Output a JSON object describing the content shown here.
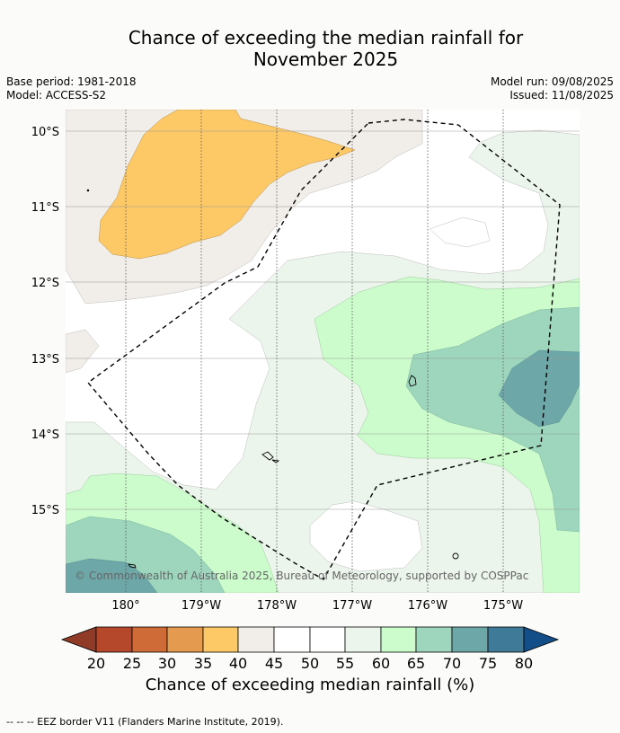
{
  "title": {
    "line1": "Chance of exceeding the median rainfall for",
    "line2": "November 2025"
  },
  "meta": {
    "base_period": "Base period: 1981-2018",
    "model": "Model: ACCESS-S2",
    "model_run": "Model run: 09/08/2025",
    "issued": "Issued: 11/08/2025"
  },
  "axes": {
    "lat_labels": [
      "10°S",
      "11°S",
      "12°S",
      "13°S",
      "14°S",
      "15°S"
    ],
    "lon_labels": [
      "180°",
      "179°W",
      "178°W",
      "177°W",
      "176°W",
      "175°W"
    ]
  },
  "copyright": "© Commonwealth of Australia 2025, Bureau of Meteorology, supported by COSPPac",
  "colorbar": {
    "ticks": [
      "20",
      "25",
      "30",
      "35",
      "40",
      "45",
      "50",
      "55",
      "60",
      "65",
      "70",
      "75",
      "80"
    ],
    "colors": {
      "below20": "#8f3b27",
      "c20_25": "#b5482a",
      "c25_30": "#cf6b36",
      "c30_35": "#e49a4f",
      "c35_40": "#fdc967",
      "c40_45": "#f1ede8",
      "c45_50": "#ffffff",
      "c50_55": "#ffffff",
      "c55_60": "#ebf5eb",
      "c60_65": "#ccfccc",
      "c65_70": "#9dd5bd",
      "c70_75": "#6ea7a8",
      "c75_80": "#3f7a98",
      "above80": "#144e88"
    },
    "title": "Chance of exceeding median rainfall (%)"
  },
  "footnote": "--  --  -- EEZ border V11 (Flanders Marine Institute, 2019)."
}
